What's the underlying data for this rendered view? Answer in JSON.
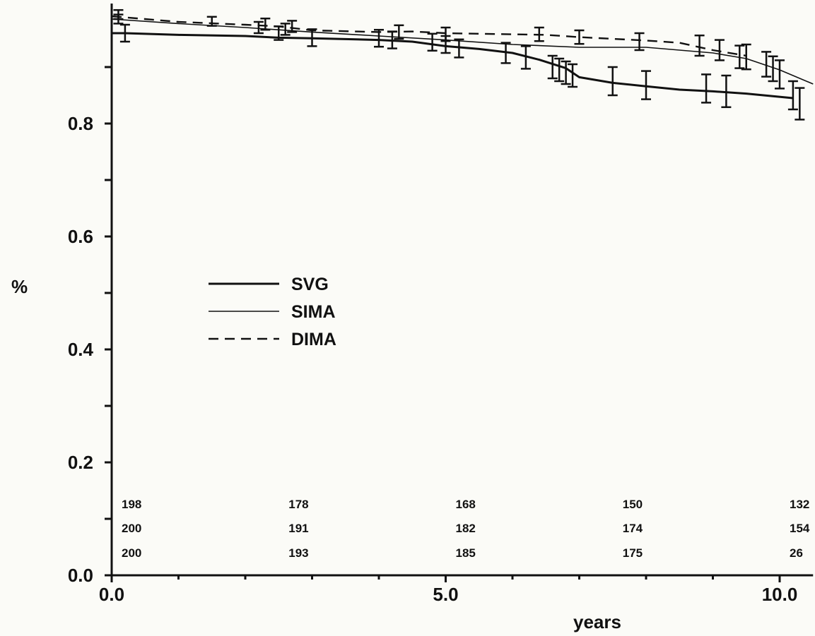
{
  "chart_data": {
    "type": "line",
    "title": "",
    "xlabel": "years",
    "ylabel": "%",
    "xlim": [
      0,
      10.5
    ],
    "ylim": [
      0,
      1.0
    ],
    "x_ticks": [
      0,
      5,
      10
    ],
    "x_tick_labels": [
      "0.0",
      "5.0",
      "10.0"
    ],
    "y_ticks": [
      0,
      0.2,
      0.4,
      0.6,
      0.8
    ],
    "y_tick_labels": [
      "0.0",
      "0.2",
      "0.4",
      "0.6",
      "0.8"
    ],
    "legend_position": "center-left",
    "series": [
      {
        "name": "SVG",
        "style": "solid",
        "width": 3,
        "points": [
          [
            0,
            0.96
          ],
          [
            0.2,
            0.96
          ],
          [
            1,
            0.957
          ],
          [
            2,
            0.955
          ],
          [
            2.5,
            0.952
          ],
          [
            3,
            0.951
          ],
          [
            4,
            0.948
          ],
          [
            4.5,
            0.945
          ],
          [
            5,
            0.937
          ],
          [
            5.5,
            0.932
          ],
          [
            6,
            0.925
          ],
          [
            6.4,
            0.913
          ],
          [
            6.8,
            0.898
          ],
          [
            7,
            0.882
          ],
          [
            7.5,
            0.872
          ],
          [
            8,
            0.866
          ],
          [
            8.5,
            0.86
          ],
          [
            9,
            0.857
          ],
          [
            9.5,
            0.853
          ],
          [
            10.2,
            0.845
          ]
        ],
        "error_bars": [
          [
            0.2,
            0.96,
            0.015
          ],
          [
            2.5,
            0.96,
            0.012
          ],
          [
            3,
            0.952,
            0.015
          ],
          [
            4,
            0.951,
            0.015
          ],
          [
            4.2,
            0.948,
            0.015
          ],
          [
            4.8,
            0.944,
            0.015
          ],
          [
            5,
            0.94,
            0.015
          ],
          [
            5.2,
            0.933,
            0.016
          ],
          [
            5.9,
            0.925,
            0.018
          ],
          [
            6.2,
            0.917,
            0.02
          ],
          [
            6.6,
            0.9,
            0.02
          ],
          [
            6.7,
            0.895,
            0.02
          ],
          [
            6.8,
            0.89,
            0.02
          ],
          [
            6.9,
            0.885,
            0.02
          ],
          [
            7.5,
            0.875,
            0.025
          ],
          [
            8,
            0.868,
            0.025
          ],
          [
            8.9,
            0.862,
            0.025
          ],
          [
            9.2,
            0.857,
            0.028
          ],
          [
            10.2,
            0.85,
            0.025
          ],
          [
            10.3,
            0.835,
            0.028
          ]
        ]
      },
      {
        "name": "SIMA",
        "style": "fine",
        "width": 1.6,
        "points": [
          [
            0,
            0.985
          ],
          [
            1,
            0.977
          ],
          [
            2,
            0.97
          ],
          [
            3,
            0.962
          ],
          [
            4,
            0.955
          ],
          [
            5,
            0.948
          ],
          [
            6,
            0.94
          ],
          [
            7,
            0.935
          ],
          [
            8,
            0.935
          ],
          [
            9,
            0.925
          ],
          [
            9.5,
            0.915
          ],
          [
            10,
            0.895
          ],
          [
            10.5,
            0.87
          ]
        ],
        "error_bars": [
          [
            0.1,
            0.985,
            0.008
          ],
          [
            2.2,
            0.97,
            0.01
          ],
          [
            2.6,
            0.967,
            0.01
          ],
          [
            9.5,
            0.918,
            0.022
          ],
          [
            9.8,
            0.905,
            0.022
          ],
          [
            9.9,
            0.897,
            0.022
          ],
          [
            10,
            0.887,
            0.025
          ]
        ]
      },
      {
        "name": "DIMA",
        "style": "dashed",
        "width": 2.4,
        "points": [
          [
            0,
            0.99
          ],
          [
            1,
            0.98
          ],
          [
            2,
            0.975
          ],
          [
            2.5,
            0.972
          ],
          [
            3,
            0.965
          ],
          [
            4,
            0.962
          ],
          [
            4.5,
            0.963
          ],
          [
            5,
            0.96
          ],
          [
            6,
            0.958
          ],
          [
            6.5,
            0.957
          ],
          [
            7,
            0.953
          ],
          [
            7.5,
            0.95
          ],
          [
            8,
            0.947
          ],
          [
            8.5,
            0.943
          ],
          [
            9,
            0.93
          ],
          [
            9.5,
            0.92
          ]
        ],
        "error_bars": [
          [
            0.1,
            0.993,
            0.008
          ],
          [
            1.5,
            0.981,
            0.008
          ],
          [
            2.3,
            0.976,
            0.01
          ],
          [
            2.7,
            0.972,
            0.01
          ],
          [
            4.3,
            0.962,
            0.012
          ],
          [
            5,
            0.958,
            0.012
          ],
          [
            6.4,
            0.958,
            0.012
          ],
          [
            7,
            0.953,
            0.012
          ],
          [
            7.9,
            0.945,
            0.015
          ],
          [
            8.8,
            0.938,
            0.018
          ],
          [
            9.1,
            0.93,
            0.018
          ],
          [
            9.4,
            0.918,
            0.02
          ]
        ]
      }
    ],
    "risk_table": {
      "x": [
        0.0,
        2.5,
        5.0,
        7.5,
        10.0
      ],
      "rows": [
        [
          "198",
          "178",
          "168",
          "150",
          "132"
        ],
        [
          "200",
          "191",
          "182",
          "174",
          "154"
        ],
        [
          "200",
          "193",
          "185",
          "175",
          "26"
        ]
      ]
    }
  }
}
